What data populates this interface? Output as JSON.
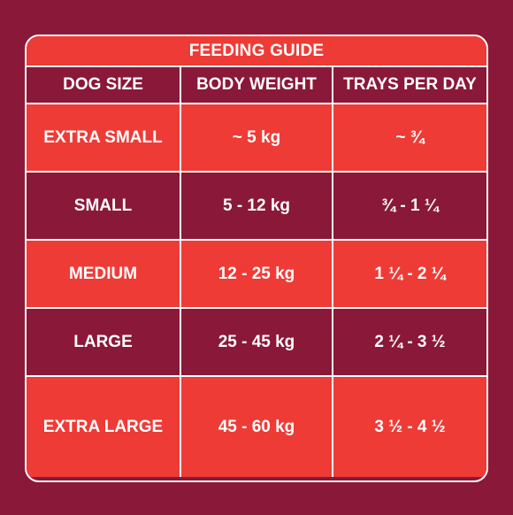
{
  "title": "FEEDING GUIDE",
  "headers": [
    "DOG SIZE",
    "BODY WEIGHT",
    "TRAYS PER DAY"
  ],
  "rows": [
    {
      "size": "EXTRA SMALL",
      "weight": "~ 5 kg",
      "trays": "~ ¾"
    },
    {
      "size": "SMALL",
      "weight": "5 - 12 kg",
      "trays": "¾ - 1 ¼"
    },
    {
      "size": "MEDIUM",
      "weight": "12 - 25 kg",
      "trays": "1 ¼ - 2 ¼"
    },
    {
      "size": "LARGE",
      "weight": "25 - 45 kg",
      "trays": "2 ¼ - 3 ½"
    },
    {
      "size": "EXTRA LARGE",
      "weight": "45 - 60 kg",
      "trays": "3 ½ - 4 ½"
    }
  ],
  "colors": {
    "background": "#8a1838",
    "accent": "#ee3b36",
    "text": "#ffffff"
  }
}
